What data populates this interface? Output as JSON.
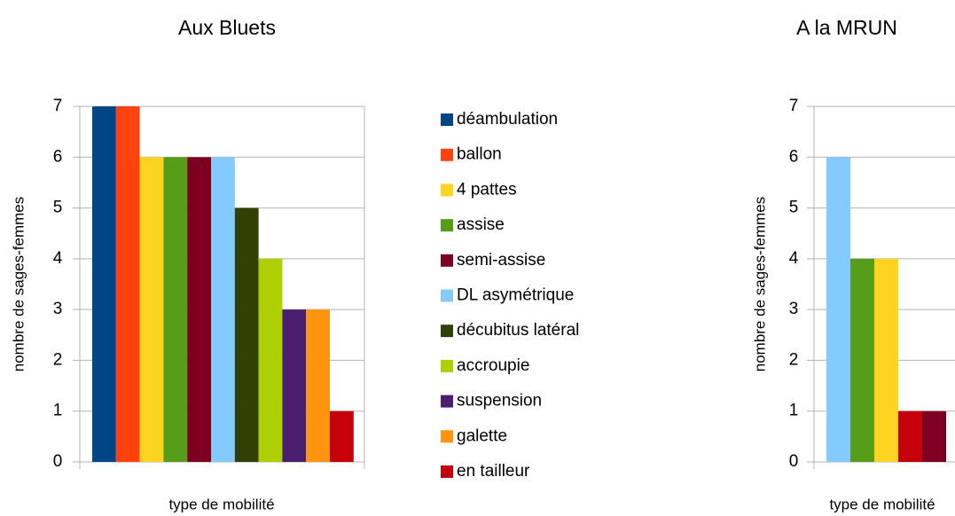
{
  "chart_data": [
    {
      "type": "bar",
      "title": "Aux Bluets",
      "x_label": "type de mobilité",
      "y_label": "nombre de sages-femmes",
      "categories": [
        null
      ],
      "ylim": [
        0,
        7
      ],
      "yticks": [
        0,
        1,
        2,
        3,
        4,
        5,
        6,
        7
      ],
      "grid": true,
      "legend": "right",
      "series": [
        {
          "name": "déambulation",
          "color": "#004586",
          "values": [
            7
          ]
        },
        {
          "name": "ballon",
          "color": "#ff420e",
          "values": [
            7
          ]
        },
        {
          "name": "4 pattes",
          "color": "#ffd320",
          "values": [
            6
          ]
        },
        {
          "name": "assise",
          "color": "#579d1c",
          "values": [
            6
          ]
        },
        {
          "name": "semi-assise",
          "color": "#7e0021",
          "values": [
            6
          ]
        },
        {
          "name": "DL asymétrique",
          "color": "#83caff",
          "values": [
            6
          ]
        },
        {
          "name": "décubitus latéral",
          "color": "#314004",
          "values": [
            5
          ]
        },
        {
          "name": "accroupie",
          "color": "#aecf00",
          "values": [
            4
          ]
        },
        {
          "name": "suspension",
          "color": "#4b1f6f",
          "values": [
            3
          ]
        },
        {
          "name": "galette",
          "color": "#ff950e",
          "values": [
            3
          ]
        },
        {
          "name": "en tailleur",
          "color": "#c5000b",
          "values": [
            1
          ]
        }
      ]
    },
    {
      "type": "bar",
      "title": "A la MRUN",
      "x_label": "type de mobilité",
      "y_label": "nombre de sages-femmes",
      "categories": [
        null
      ],
      "ylim": [
        0,
        7
      ],
      "yticks": [
        0,
        1,
        2,
        3,
        4,
        5,
        6,
        7
      ],
      "grid": true,
      "series": [
        {
          "color": "#83caff",
          "values": [
            6
          ]
        },
        {
          "color": "#579d1c",
          "values": [
            4
          ]
        },
        {
          "color": "#ffd320",
          "values": [
            4
          ]
        },
        {
          "color": "#c5000b",
          "values": [
            1
          ]
        },
        {
          "color": "#7e0021",
          "values": [
            1
          ]
        }
      ]
    }
  ]
}
